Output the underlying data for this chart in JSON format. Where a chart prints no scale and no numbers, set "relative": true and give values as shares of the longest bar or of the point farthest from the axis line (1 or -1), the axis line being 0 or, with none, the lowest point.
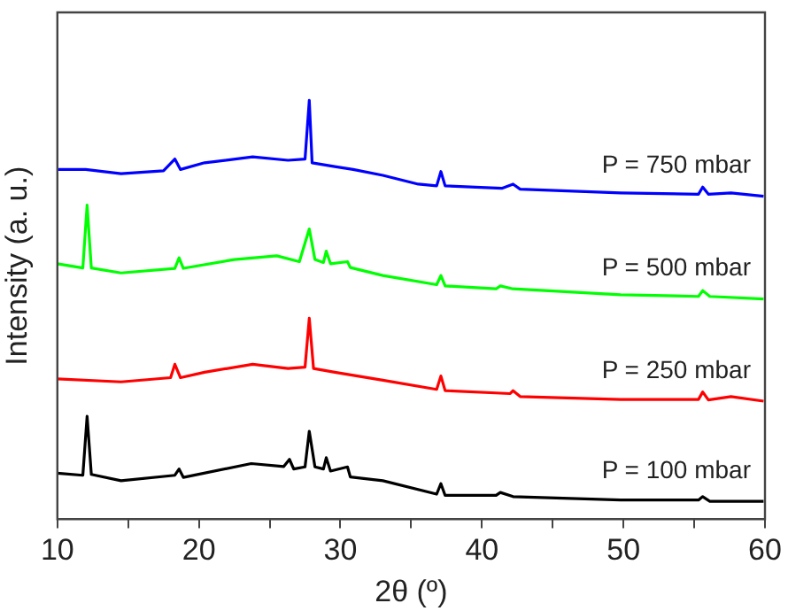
{
  "chart_data": {
    "type": "line",
    "xlabel": "2θ (º)",
    "ylabel": "Intensity (a. u.)",
    "relative": true,
    "xlim": [
      10,
      60
    ],
    "xticks": [
      10,
      {
        "value": 15,
        "label": null
      },
      20,
      {
        "value": 25,
        "label": null
      },
      30,
      {
        "value": 35,
        "label": null
      },
      40,
      {
        "value": 45,
        "label": null
      },
      50,
      {
        "value": 55,
        "label": null
      },
      60
    ],
    "grid": false,
    "legend": false,
    "marker": "none",
    "line_style": "solid",
    "series": [
      {
        "name": "P = 100 mbar",
        "color": "#000000",
        "x": [
          10,
          11.8,
          12.1,
          12.4,
          14.5,
          18.3,
          18.6,
          18.9,
          23.7,
          26.0,
          26.4,
          26.7,
          27.5,
          27.8,
          28.2,
          28.8,
          29.0,
          29.3,
          30.5,
          30.7,
          33.0,
          36.8,
          37.1,
          37.4,
          41.0,
          41.3,
          42.2,
          49.8,
          55.3,
          55.6,
          56.1,
          59.9
        ],
        "values": [
          0.11,
          0.105,
          0.246,
          0.107,
          0.092,
          0.105,
          0.12,
          0.1,
          0.133,
          0.126,
          0.143,
          0.12,
          0.125,
          0.21,
          0.125,
          0.12,
          0.147,
          0.115,
          0.125,
          0.101,
          0.092,
          0.06,
          0.085,
          0.057,
          0.057,
          0.064,
          0.054,
          0.046,
          0.046,
          0.054,
          0.043,
          0.043
        ]
      },
      {
        "name": "P = 250 mbar",
        "color": "#ff0000",
        "x": [
          10,
          14.5,
          18.0,
          18.3,
          18.7,
          20.4,
          23.8,
          26.3,
          27.5,
          27.8,
          28.1,
          29.6,
          33.0,
          36.8,
          37.1,
          37.4,
          42.0,
          42.2,
          42.7,
          49.8,
          55.3,
          55.6,
          56.0,
          57.6,
          59.9
        ],
        "values": [
          0.335,
          0.328,
          0.338,
          0.37,
          0.338,
          0.351,
          0.37,
          0.36,
          0.363,
          0.48,
          0.36,
          0.351,
          0.332,
          0.31,
          0.342,
          0.307,
          0.3,
          0.307,
          0.293,
          0.286,
          0.286,
          0.304,
          0.285,
          0.293,
          0.282
        ]
      },
      {
        "name": "P = 500 mbar",
        "color": "#00ff00",
        "x": [
          10,
          11.8,
          12.1,
          12.4,
          14.5,
          18.3,
          18.6,
          18.9,
          22.5,
          25.5,
          27.1,
          27.8,
          28.2,
          28.8,
          29.0,
          29.3,
          30.5,
          30.7,
          33.0,
          36.8,
          37.1,
          37.4,
          41.0,
          41.3,
          42.2,
          49.8,
          55.3,
          55.6,
          56.1,
          59.9
        ],
        "values": [
          0.61,
          0.6,
          0.75,
          0.6,
          0.588,
          0.599,
          0.624,
          0.599,
          0.62,
          0.629,
          0.615,
          0.693,
          0.62,
          0.613,
          0.64,
          0.61,
          0.615,
          0.601,
          0.582,
          0.56,
          0.582,
          0.557,
          0.55,
          0.557,
          0.55,
          0.536,
          0.532,
          0.546,
          0.532,
          0.526
        ]
      },
      {
        "name": "P = 750 mbar",
        "color": "#0000ff",
        "x": [
          10,
          12.0,
          14.5,
          17.5,
          18.3,
          18.7,
          20.4,
          23.8,
          26.3,
          27.5,
          27.8,
          28.0,
          29.6,
          30.9,
          33.0,
          35.5,
          36.8,
          37.1,
          37.4,
          41.4,
          42.2,
          42.7,
          49.8,
          55.3,
          55.6,
          56.0,
          57.6,
          59.9
        ],
        "values": [
          0.835,
          0.835,
          0.825,
          0.832,
          0.86,
          0.835,
          0.851,
          0.865,
          0.857,
          0.86,
          1,
          0.851,
          0.842,
          0.835,
          0.821,
          0.8,
          0.796,
          0.83,
          0.796,
          0.79,
          0.8,
          0.788,
          0.779,
          0.776,
          0.793,
          0.776,
          0.779,
          0.771
        ]
      }
    ]
  }
}
